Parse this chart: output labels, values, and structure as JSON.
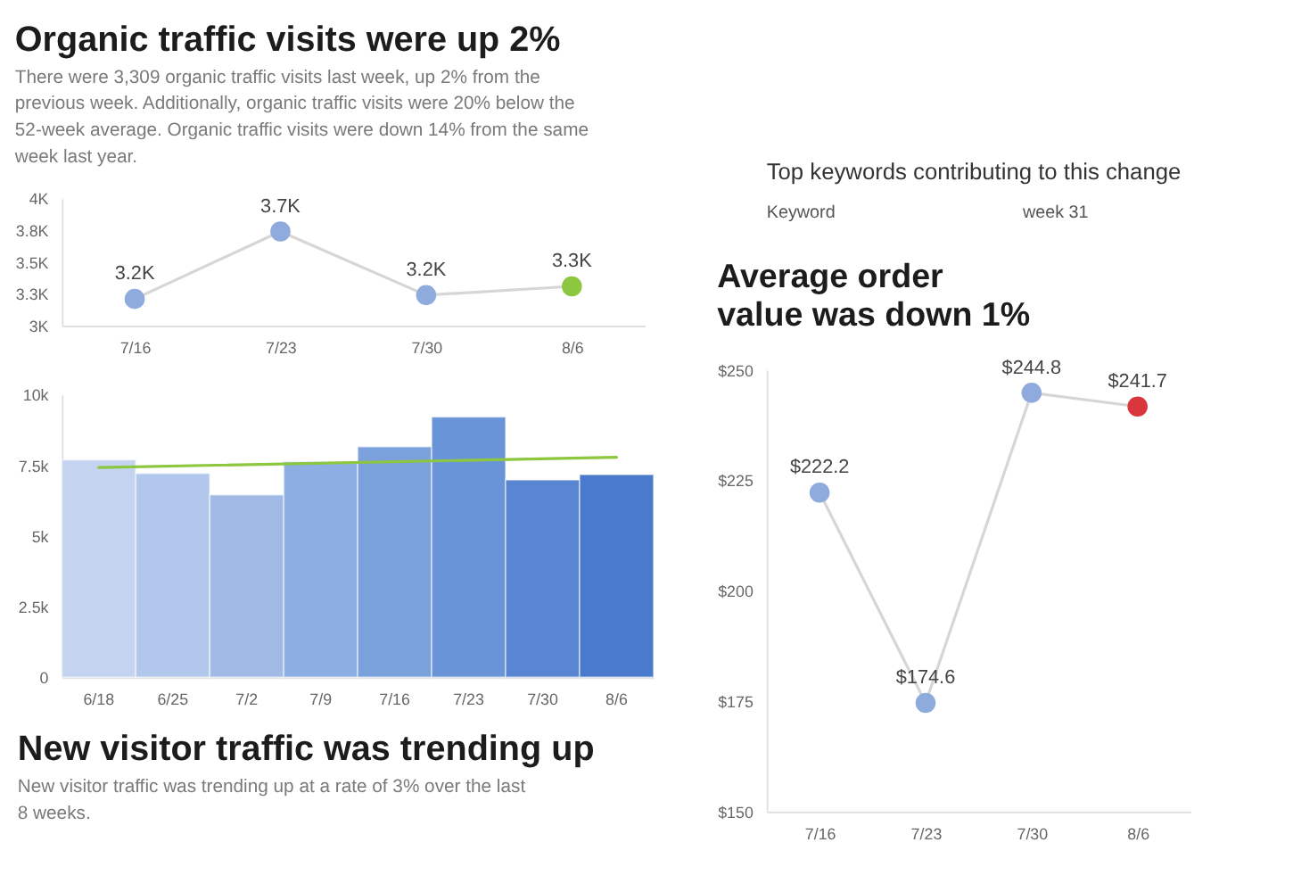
{
  "chart_data": [
    {
      "type": "line",
      "title": "Organic traffic visits were up 2%",
      "subtitle": "There were 3,309 organic traffic visits last week, up 2% from the\nprevious week. Additionally, organic traffic visits were 20% below the\n52-week average. Organic traffic visits were down 14% from the same\nweek last year.",
      "categories": [
        "7/16",
        "7/23",
        "7/30",
        "8/6"
      ],
      "values": [
        3210,
        3740,
        3240,
        3309
      ],
      "color": "#d6d6d6",
      "colors": [
        "#8faadc",
        "#8faadc",
        "#8faadc",
        "#8dc63f"
      ],
      "value_labels": [
        "3.2K",
        "3.7K",
        "3.2K",
        "3.3K"
      ],
      "ylim": [
        3000,
        4000
      ],
      "yticks": [
        {
          "value": 3000,
          "label": "3K"
        },
        {
          "value": 3250,
          "label": "3.3K"
        },
        {
          "value": 3500,
          "label": "3.5K"
        },
        {
          "value": 3750,
          "label": "3.8K"
        },
        {
          "value": 4000,
          "label": "4K"
        }
      ],
      "marker": "circle"
    },
    {
      "type": "other",
      "title": "Top keywords contributing to this change",
      "annotations": [
        "Keyword",
        "week 31"
      ]
    },
    {
      "type": "bar",
      "title": "New visitor traffic was trending up",
      "subtitle": "New visitor traffic was trending up at a rate of 3% over the last\n8 weeks.",
      "categories": [
        "6/18",
        "6/25",
        "7/2",
        "7/9",
        "7/16",
        "7/23",
        "7/30",
        "8/6"
      ],
      "series": [
        {
          "type": "bar",
          "colors": [
            "#c3d3f0",
            "#b1c7ec",
            "#a0bae5",
            "#8daee2",
            "#7ba1dd",
            "#6a94d8",
            "#5886d2",
            "#4a7acb"
          ],
          "values": [
            7690,
            7210,
            6450,
            7620,
            8160,
            9210,
            6980,
            7170
          ]
        },
        {
          "type": "line",
          "x": [
            "6/18",
            "8/6"
          ],
          "color": "#8dc63f",
          "values": [
            7420,
            7780
          ]
        }
      ],
      "ylim": [
        0,
        10000
      ],
      "yticks": [
        0,
        {
          "value": 2500,
          "label": "2.5k"
        },
        {
          "value": 5000,
          "label": "5k"
        },
        {
          "value": 7500,
          "label": "7.5k"
        },
        {
          "value": 10000,
          "label": "10k"
        }
      ]
    },
    {
      "type": "line",
      "title": "Average order\nvalue was down 1%",
      "categories": [
        "7/16",
        "7/23",
        "7/30",
        "8/6"
      ],
      "values": [
        222.2,
        174.6,
        244.8,
        241.7
      ],
      "color": "#d6d6d6",
      "colors": [
        "#8faadc",
        "#8faadc",
        "#8faadc",
        "#d9363e"
      ],
      "value_labels": [
        "$222.2",
        "$174.6",
        "$244.8",
        "$241.7"
      ],
      "ylim": [
        150,
        250
      ],
      "yticks": [
        {
          "value": 150,
          "label": "$150"
        },
        {
          "value": 175,
          "label": "$175"
        },
        {
          "value": 200,
          "label": "$200"
        },
        {
          "value": 225,
          "label": "$225"
        },
        {
          "value": 250,
          "label": "$250"
        }
      ],
      "marker": "circle"
    }
  ]
}
